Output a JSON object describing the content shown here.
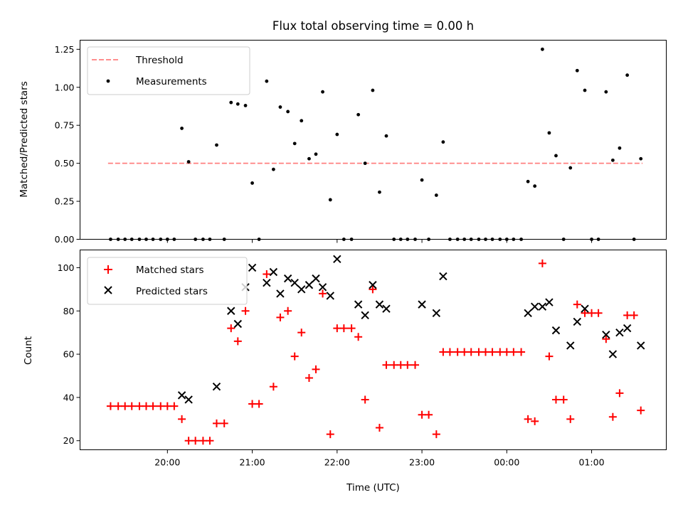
{
  "chart_data": [
    {
      "type": "scatter",
      "title": "Flux total observing time = 0.00 h",
      "ylabel": "Matched/Predicted stars",
      "xlabel": "",
      "ylim": [
        0,
        1.31
      ],
      "yticks": [
        0.0,
        0.25,
        0.5,
        0.75,
        1.0,
        1.25
      ],
      "ytick_labels": [
        "0.00",
        "0.25",
        "0.50",
        "0.75",
        "1.00",
        "1.25"
      ],
      "legend_location": "upper-left",
      "threshold": {
        "name": "Threshold",
        "value": 0.5,
        "color": "#ff7f7f",
        "x_range": [
          19.3,
          25.6
        ]
      },
      "series": [
        {
          "name": "Measurements",
          "color": "#000000",
          "marker": "dot",
          "points": [
            [
              19.33,
              0
            ],
            [
              19.42,
              0
            ],
            [
              19.5,
              0
            ],
            [
              19.58,
              0
            ],
            [
              19.67,
              0
            ],
            [
              19.75,
              0
            ],
            [
              19.83,
              0
            ],
            [
              19.92,
              0
            ],
            [
              20.0,
              0
            ],
            [
              20.08,
              0
            ],
            [
              20.17,
              0.73
            ],
            [
              20.25,
              0.51
            ],
            [
              20.33,
              0
            ],
            [
              20.42,
              0
            ],
            [
              20.5,
              0
            ],
            [
              20.58,
              0.62
            ],
            [
              20.67,
              0
            ],
            [
              20.75,
              0.9
            ],
            [
              20.83,
              0.89
            ],
            [
              20.92,
              0.88
            ],
            [
              21.0,
              0.37
            ],
            [
              21.08,
              0
            ],
            [
              21.17,
              1.04
            ],
            [
              21.25,
              0.46
            ],
            [
              21.33,
              0.87
            ],
            [
              21.42,
              0.84
            ],
            [
              21.5,
              0.63
            ],
            [
              21.58,
              0.78
            ],
            [
              21.67,
              0.53
            ],
            [
              21.75,
              0.56
            ],
            [
              21.83,
              0.97
            ],
            [
              21.92,
              0.26
            ],
            [
              22.0,
              0.69
            ],
            [
              22.08,
              0
            ],
            [
              22.17,
              0
            ],
            [
              22.25,
              0.82
            ],
            [
              22.33,
              0.5
            ],
            [
              22.42,
              0.98
            ],
            [
              22.5,
              0.31
            ],
            [
              22.58,
              0.68
            ],
            [
              22.67,
              0
            ],
            [
              22.75,
              0
            ],
            [
              22.83,
              0
            ],
            [
              22.92,
              0
            ],
            [
              23.0,
              0.39
            ],
            [
              23.08,
              0
            ],
            [
              23.17,
              0.29
            ],
            [
              23.25,
              0.64
            ],
            [
              23.33,
              0
            ],
            [
              23.42,
              0
            ],
            [
              23.5,
              0
            ],
            [
              23.58,
              0
            ],
            [
              23.67,
              0
            ],
            [
              23.75,
              0
            ],
            [
              23.83,
              0
            ],
            [
              23.92,
              0
            ],
            [
              24.0,
              0
            ],
            [
              24.08,
              0
            ],
            [
              24.17,
              0
            ],
            [
              24.25,
              0.38
            ],
            [
              24.33,
              0.35
            ],
            [
              24.42,
              1.25
            ],
            [
              24.5,
              0.7
            ],
            [
              24.58,
              0.55
            ],
            [
              24.67,
              0
            ],
            [
              24.75,
              0.47
            ],
            [
              24.83,
              1.11
            ],
            [
              24.92,
              0.98
            ],
            [
              25.0,
              0
            ],
            [
              25.08,
              0
            ],
            [
              25.17,
              0.97
            ],
            [
              25.25,
              0.52
            ],
            [
              25.33,
              0.6
            ],
            [
              25.42,
              1.08
            ],
            [
              25.5,
              0
            ],
            [
              25.58,
              0.53
            ]
          ]
        }
      ]
    },
    {
      "type": "scatter",
      "xlabel": "Time (UTC)",
      "ylabel": "Count",
      "xlim": [
        18.97,
        25.88
      ],
      "ylim": [
        15.8,
        108.2
      ],
      "xticks": [
        20,
        21,
        22,
        23,
        24,
        25
      ],
      "xtick_labels": [
        "20:00",
        "21:00",
        "22:00",
        "23:00",
        "00:00",
        "01:00"
      ],
      "yticks": [
        20,
        40,
        60,
        80,
        100
      ],
      "ytick_labels": [
        "20",
        "40",
        "60",
        "80",
        "100"
      ],
      "legend_location": "upper-left",
      "series": [
        {
          "name": "Matched stars",
          "color": "#ff0000",
          "marker": "plus",
          "points": [
            [
              19.33,
              36
            ],
            [
              19.42,
              36
            ],
            [
              19.5,
              36
            ],
            [
              19.58,
              36
            ],
            [
              19.67,
              36
            ],
            [
              19.75,
              36
            ],
            [
              19.83,
              36
            ],
            [
              19.92,
              36
            ],
            [
              20.0,
              36
            ],
            [
              20.08,
              36
            ],
            [
              20.17,
              30
            ],
            [
              20.25,
              20
            ],
            [
              20.33,
              20
            ],
            [
              20.42,
              20
            ],
            [
              20.5,
              20
            ],
            [
              20.58,
              28
            ],
            [
              20.67,
              28
            ],
            [
              20.75,
              72
            ],
            [
              20.83,
              66
            ],
            [
              20.92,
              80
            ],
            [
              21.0,
              37
            ],
            [
              21.08,
              37
            ],
            [
              21.17,
              97
            ],
            [
              21.25,
              45
            ],
            [
              21.33,
              77
            ],
            [
              21.42,
              80
            ],
            [
              21.5,
              59
            ],
            [
              21.58,
              70
            ],
            [
              21.67,
              49
            ],
            [
              21.75,
              53
            ],
            [
              21.83,
              88
            ],
            [
              21.92,
              23
            ],
            [
              22.0,
              72
            ],
            [
              22.08,
              72
            ],
            [
              22.17,
              72
            ],
            [
              22.25,
              68
            ],
            [
              22.33,
              39
            ],
            [
              22.42,
              90
            ],
            [
              22.5,
              26
            ],
            [
              22.58,
              55
            ],
            [
              22.67,
              55
            ],
            [
              22.75,
              55
            ],
            [
              22.83,
              55
            ],
            [
              22.92,
              55
            ],
            [
              23.0,
              32
            ],
            [
              23.08,
              32
            ],
            [
              23.17,
              23
            ],
            [
              23.25,
              61
            ],
            [
              23.33,
              61
            ],
            [
              23.42,
              61
            ],
            [
              23.5,
              61
            ],
            [
              23.58,
              61
            ],
            [
              23.67,
              61
            ],
            [
              23.75,
              61
            ],
            [
              23.83,
              61
            ],
            [
              23.92,
              61
            ],
            [
              24.0,
              61
            ],
            [
              24.08,
              61
            ],
            [
              24.17,
              61
            ],
            [
              24.25,
              30
            ],
            [
              24.33,
              29
            ],
            [
              24.42,
              102
            ],
            [
              24.5,
              59
            ],
            [
              24.58,
              39
            ],
            [
              24.67,
              39
            ],
            [
              24.75,
              30
            ],
            [
              24.83,
              83
            ],
            [
              24.92,
              79
            ],
            [
              25.0,
              79
            ],
            [
              25.08,
              79
            ],
            [
              25.17,
              67
            ],
            [
              25.25,
              31
            ],
            [
              25.33,
              42
            ],
            [
              25.42,
              78
            ],
            [
              25.5,
              78
            ],
            [
              25.58,
              34
            ]
          ]
        },
        {
          "name": "Predicted stars",
          "color": "#000000",
          "marker": "x",
          "points": [
            [
              20.17,
              41
            ],
            [
              20.25,
              39
            ],
            [
              20.58,
              45
            ],
            [
              20.75,
              80
            ],
            [
              20.83,
              74
            ],
            [
              20.92,
              91
            ],
            [
              21.0,
              100
            ],
            [
              21.17,
              93
            ],
            [
              21.25,
              98
            ],
            [
              21.33,
              88
            ],
            [
              21.42,
              95
            ],
            [
              21.5,
              93
            ],
            [
              21.58,
              90
            ],
            [
              21.67,
              92
            ],
            [
              21.75,
              95
            ],
            [
              21.83,
              91
            ],
            [
              21.92,
              87
            ],
            [
              22.0,
              104
            ],
            [
              22.25,
              83
            ],
            [
              22.33,
              78
            ],
            [
              22.42,
              92
            ],
            [
              22.5,
              83
            ],
            [
              22.58,
              81
            ],
            [
              23.0,
              83
            ],
            [
              23.17,
              79
            ],
            [
              23.25,
              96
            ],
            [
              24.25,
              79
            ],
            [
              24.33,
              82
            ],
            [
              24.42,
              82
            ],
            [
              24.5,
              84
            ],
            [
              24.58,
              71
            ],
            [
              24.75,
              64
            ],
            [
              24.83,
              75
            ],
            [
              24.92,
              81
            ],
            [
              25.17,
              69
            ],
            [
              25.25,
              60
            ],
            [
              25.33,
              70
            ],
            [
              25.42,
              72
            ],
            [
              25.58,
              64
            ]
          ]
        }
      ]
    }
  ]
}
